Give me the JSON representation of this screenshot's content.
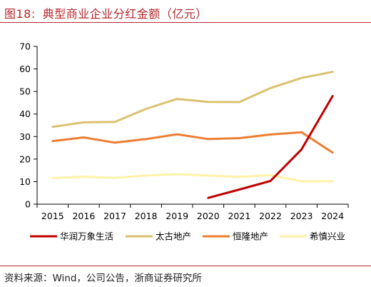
{
  "header": {
    "figure_label": "图18:",
    "title": "典型商业企业分红金额（亿元）"
  },
  "footer": {
    "source": "资料来源：Wind，公司公告，浙商证券研究所"
  },
  "chart_data": {
    "type": "line",
    "title": "典型商业企业分红金额（亿元）",
    "xlabel": "",
    "ylabel": "",
    "ylim": [
      0,
      70
    ],
    "yticks": [
      0,
      10,
      20,
      30,
      40,
      50,
      60,
      70
    ],
    "x": [
      "2015",
      "2016",
      "2017",
      "2018",
      "2019",
      "2020",
      "2021",
      "2022",
      "2023",
      "2024"
    ],
    "grid": false,
    "legend_position": "bottom",
    "series": [
      {
        "name": "华润万象生活",
        "color": "#c00000",
        "values": [
          null,
          null,
          null,
          null,
          null,
          2.8,
          6.5,
          10.3,
          24.3,
          48.0
        ]
      },
      {
        "name": "太古地产",
        "color": "#d9c26f",
        "values": [
          34.3,
          36.3,
          36.5,
          42.3,
          46.7,
          45.4,
          45.3,
          51.5,
          56.0,
          58.7
        ]
      },
      {
        "name": "恒隆地产",
        "color": "#ed7d31",
        "values": [
          28.0,
          29.6,
          27.3,
          28.9,
          31.0,
          28.9,
          29.3,
          30.9,
          31.9,
          22.9
        ]
      },
      {
        "name": "希慎兴业",
        "color": "#fff2a8",
        "values": [
          11.6,
          12.2,
          11.7,
          12.7,
          13.3,
          12.7,
          12.1,
          12.9,
          10.1,
          10.2
        ]
      }
    ]
  }
}
